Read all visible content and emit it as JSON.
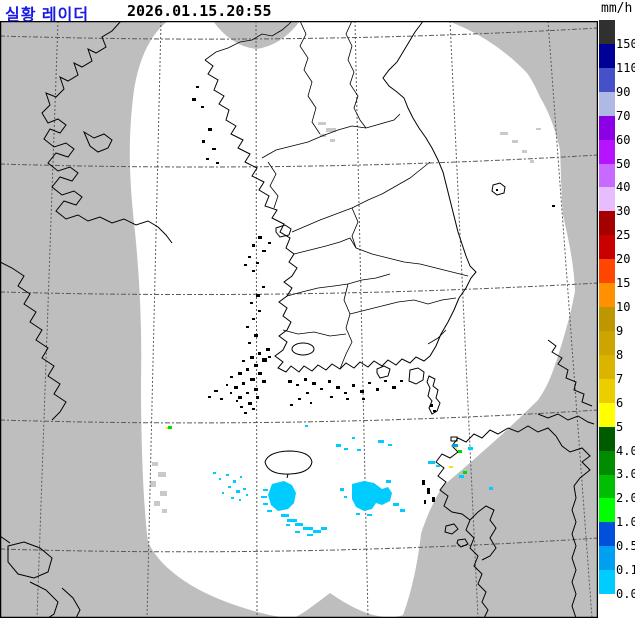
{
  "header": {
    "title": "실황 레이더",
    "timestamp": "2026.01.15.20:55"
  },
  "legend": {
    "unit": "mm/h",
    "segments": [
      {
        "label": "150",
        "color": "#303030"
      },
      {
        "label": "110",
        "color": "#000096"
      },
      {
        "label": "90",
        "color": "#4650c8"
      },
      {
        "label": "70",
        "color": "#afb9e6"
      },
      {
        "label": "60",
        "color": "#8c00e6"
      },
      {
        "label": "50",
        "color": "#b414ff"
      },
      {
        "label": "40",
        "color": "#c869ff"
      },
      {
        "label": "30",
        "color": "#e6beff"
      },
      {
        "label": "25",
        "color": "#a50000"
      },
      {
        "label": "20",
        "color": "#c80000"
      },
      {
        "label": "15",
        "color": "#ff4600"
      },
      {
        "label": "10",
        "color": "#ff9100"
      },
      {
        "label": "9",
        "color": "#be9600"
      },
      {
        "label": "8",
        "color": "#cda500"
      },
      {
        "label": "7",
        "color": "#dcb400"
      },
      {
        "label": "6",
        "color": "#ebcd00"
      },
      {
        "label": "5",
        "color": "#ffff00"
      },
      {
        "label": "4.0",
        "color": "#005a00"
      },
      {
        "label": "3.0",
        "color": "#008c00"
      },
      {
        "label": "2.0",
        "color": "#00be00"
      },
      {
        "label": "1.0",
        "color": "#00ff00"
      },
      {
        "label": "0.5",
        "color": "#0050dc"
      },
      {
        "label": "0.1",
        "color": "#00a0f0"
      },
      {
        "label": "0.0",
        "color": "#00ccff"
      },
      {
        "label": "",
        "color": "#ffffff"
      }
    ]
  },
  "colors": {
    "title_blue": "#1a1ae6",
    "background_gray": "#bebebe",
    "coverage_white": "#ffffff",
    "coastline_black": "#000000",
    "echo_cyan": "#00ccff",
    "echo_azure": "#00a0f0",
    "echo_green": "#00dc00",
    "echo_yellow": "#ffe100"
  }
}
